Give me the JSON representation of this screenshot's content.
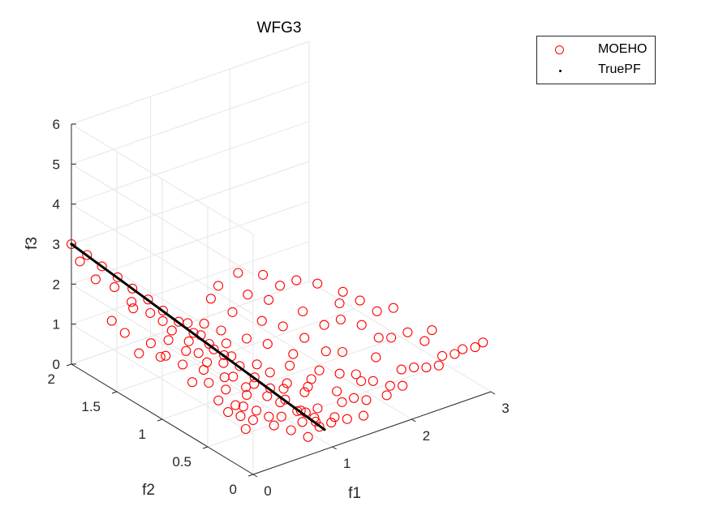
{
  "chart_data": {
    "type": "scatter",
    "title": "WFG3",
    "xlabel": "f1",
    "ylabel": "f2",
    "zlabel": "f3",
    "xlim": [
      0,
      3
    ],
    "ylim": [
      0,
      2
    ],
    "zlim": [
      0,
      6
    ],
    "xticks": [
      "0",
      "1",
      "2",
      "3"
    ],
    "yticks": [
      "0",
      "0.5",
      "1",
      "1.5",
      "2"
    ],
    "zticks": [
      "0",
      "1",
      "2",
      "3",
      "4",
      "5",
      "6"
    ],
    "grid": true,
    "legend_position": "top-right",
    "series": [
      {
        "name": "MOEHO",
        "marker": "circle",
        "color": "#ff0000",
        "points": [
          [
            0.0,
            2.0,
            3.0
          ],
          [
            0.06,
            1.88,
            2.85
          ],
          [
            0.11,
            1.76,
            2.7
          ],
          [
            0.17,
            1.64,
            2.55
          ],
          [
            0.22,
            1.52,
            2.4
          ],
          [
            0.28,
            1.4,
            2.25
          ],
          [
            0.33,
            1.28,
            2.1
          ],
          [
            0.39,
            1.16,
            1.95
          ],
          [
            0.44,
            1.04,
            1.8
          ],
          [
            0.5,
            0.92,
            1.65
          ],
          [
            0.55,
            0.8,
            1.5
          ],
          [
            0.61,
            0.68,
            1.35
          ],
          [
            0.66,
            0.56,
            1.2
          ],
          [
            0.72,
            0.44,
            1.05
          ],
          [
            0.77,
            0.32,
            0.9
          ],
          [
            0.83,
            0.2,
            0.75
          ],
          [
            0.88,
            0.08,
            0.6
          ],
          [
            0.05,
            1.95,
            2.6
          ],
          [
            0.1,
            1.82,
            2.3
          ],
          [
            0.2,
            1.7,
            2.2
          ],
          [
            0.3,
            1.6,
            1.9
          ],
          [
            0.25,
            1.35,
            2.0
          ],
          [
            0.35,
            1.2,
            1.7
          ],
          [
            0.45,
            1.1,
            1.5
          ],
          [
            0.4,
            0.95,
            1.45
          ],
          [
            0.6,
            0.85,
            1.2
          ],
          [
            0.55,
            0.7,
            1.1
          ],
          [
            0.7,
            0.6,
            0.95
          ],
          [
            0.8,
            0.4,
            0.7
          ],
          [
            0.9,
            0.3,
            0.55
          ],
          [
            0.65,
            1.0,
            1.3
          ],
          [
            0.15,
            1.45,
            2.05
          ],
          [
            0.3,
            1.0,
            1.5
          ],
          [
            0.45,
            0.9,
            1.25
          ],
          [
            0.5,
            0.75,
            1.05
          ],
          [
            0.62,
            0.62,
            0.9
          ],
          [
            0.75,
            0.5,
            0.75
          ],
          [
            0.35,
            0.85,
            1.2
          ],
          [
            0.55,
            0.55,
            0.85
          ],
          [
            0.25,
            1.15,
            1.6
          ],
          [
            0.4,
            0.65,
            0.95
          ],
          [
            0.2,
            0.95,
            1.3
          ],
          [
            0.3,
            0.75,
            1.05
          ],
          [
            0.15,
            0.8,
            1.1
          ],
          [
            0.45,
            0.5,
            0.7
          ],
          [
            0.1,
            1.05,
            1.45
          ],
          [
            0.6,
            0.35,
            0.55
          ],
          [
            0.05,
            1.6,
            1.6
          ],
          [
            0.1,
            1.5,
            1.4
          ],
          [
            0.2,
            1.3,
            1.35
          ],
          [
            0.35,
            1.3,
            1.8
          ],
          [
            0.05,
            1.3,
            1.2
          ],
          [
            0.15,
            1.15,
            1.25
          ],
          [
            0.25,
            0.6,
            0.85
          ],
          [
            0.35,
            0.5,
            0.8
          ],
          [
            0.5,
            0.4,
            0.7
          ],
          [
            0.7,
            0.3,
            0.55
          ],
          [
            0.85,
            0.2,
            0.45
          ],
          [
            0.95,
            0.1,
            0.4
          ],
          [
            1.0,
            0.2,
            0.45
          ],
          [
            1.1,
            0.25,
            0.55
          ],
          [
            1.2,
            0.15,
            0.4
          ],
          [
            1.3,
            0.1,
            0.35
          ],
          [
            1.0,
            0.5,
            0.9
          ],
          [
            1.15,
            0.6,
            1.1
          ],
          [
            1.25,
            0.45,
            0.9
          ],
          [
            1.4,
            0.3,
            0.7
          ],
          [
            1.5,
            0.2,
            0.6
          ],
          [
            1.6,
            0.15,
            0.55
          ],
          [
            1.55,
            0.4,
            0.9
          ],
          [
            1.7,
            0.35,
            0.85
          ],
          [
            1.8,
            0.25,
            0.75
          ],
          [
            1.9,
            0.15,
            0.7
          ],
          [
            2.0,
            0.1,
            0.7
          ],
          [
            2.1,
            0.2,
            0.9
          ],
          [
            2.2,
            0.15,
            0.95
          ],
          [
            2.3,
            0.1,
            0.95
          ],
          [
            2.4,
            0.05,
            1.0
          ],
          [
            2.5,
            0.1,
            1.1
          ],
          [
            2.6,
            0.05,
            1.15
          ],
          [
            2.7,
            0.05,
            1.2
          ],
          [
            2.8,
            0.0,
            1.25
          ],
          [
            2.9,
            0.0,
            1.3
          ],
          [
            2.2,
            0.4,
            1.35
          ],
          [
            2.35,
            0.35,
            1.45
          ],
          [
            2.0,
            0.55,
            1.6
          ],
          [
            1.95,
            0.75,
            1.9
          ],
          [
            1.85,
            0.65,
            1.7
          ],
          [
            2.05,
            0.8,
            2.05
          ],
          [
            1.7,
            0.7,
            1.6
          ],
          [
            1.6,
            0.85,
            1.8
          ],
          [
            1.45,
            0.7,
            1.45
          ],
          [
            1.35,
            0.85,
            1.6
          ],
          [
            1.2,
            0.95,
            1.7
          ],
          [
            1.1,
            0.8,
            1.4
          ],
          [
            0.95,
            0.9,
            1.5
          ],
          [
            0.85,
            0.7,
            1.2
          ],
          [
            0.8,
            1.05,
            1.6
          ],
          [
            0.7,
            0.85,
            1.3
          ],
          [
            1.0,
            1.1,
            1.85
          ],
          [
            1.25,
            1.15,
            2.05
          ],
          [
            1.4,
            1.05,
            1.95
          ],
          [
            1.6,
            1.1,
            2.1
          ],
          [
            1.75,
            1.05,
            2.2
          ],
          [
            1.9,
            0.95,
            2.15
          ],
          [
            1.5,
            1.2,
            2.3
          ],
          [
            1.3,
            1.3,
            2.35
          ],
          [
            1.05,
            1.3,
            2.2
          ],
          [
            0.9,
            1.25,
            2.05
          ],
          [
            1.55,
            0.55,
            1.25
          ],
          [
            1.25,
            0.65,
            1.25
          ],
          [
            1.05,
            0.35,
            0.85
          ],
          [
            0.9,
            0.45,
            0.9
          ],
          [
            1.35,
            0.45,
            1.05
          ],
          [
            1.7,
            0.5,
            1.2
          ],
          [
            2.1,
            0.45,
            1.35
          ],
          [
            2.45,
            0.25,
            1.3
          ],
          [
            2.6,
            0.3,
            1.4
          ],
          [
            1.8,
            0.1,
            0.6
          ],
          [
            1.45,
            0.05,
            0.4
          ],
          [
            0.65,
            0.15,
            0.45
          ],
          [
            0.75,
            0.05,
            0.35
          ],
          [
            0.55,
            0.25,
            0.5
          ],
          [
            0.4,
            0.35,
            0.6
          ],
          [
            0.3,
            0.4,
            0.7
          ],
          [
            0.2,
            0.45,
            0.8
          ],
          [
            0.25,
            0.3,
            0.55
          ],
          [
            0.9,
            0.6,
            1.1
          ],
          [
            1.15,
            0.4,
            0.85
          ],
          [
            0.75,
            0.95,
            1.45
          ],
          [
            0.6,
            1.1,
            1.55
          ],
          [
            0.55,
            1.2,
            1.75
          ],
          [
            0.7,
            1.15,
            1.7
          ],
          [
            2.25,
            0.6,
            1.7
          ],
          [
            2.4,
            0.55,
            1.75
          ],
          [
            2.15,
            0.7,
            1.9
          ],
          [
            1.95,
            0.35,
            1.1
          ],
          [
            1.65,
            0.25,
            0.85
          ],
          [
            1.35,
            0.2,
            0.6
          ],
          [
            1.1,
            0.1,
            0.4
          ],
          [
            0.95,
            0.25,
            0.55
          ]
        ]
      },
      {
        "name": "TruePF",
        "marker": "point",
        "color": "#000000",
        "points": [
          [
            0.0,
            2.0,
            3.0
          ],
          [
            0.09,
            1.8,
            2.75
          ],
          [
            0.18,
            1.6,
            2.5
          ],
          [
            0.27,
            1.4,
            2.25
          ],
          [
            0.36,
            1.2,
            2.0
          ],
          [
            0.45,
            1.0,
            1.75
          ],
          [
            0.54,
            0.8,
            1.5
          ],
          [
            0.63,
            0.6,
            1.25
          ],
          [
            0.72,
            0.4,
            1.0
          ],
          [
            0.81,
            0.2,
            0.75
          ],
          [
            0.9,
            0.0,
            0.5
          ]
        ]
      }
    ]
  }
}
